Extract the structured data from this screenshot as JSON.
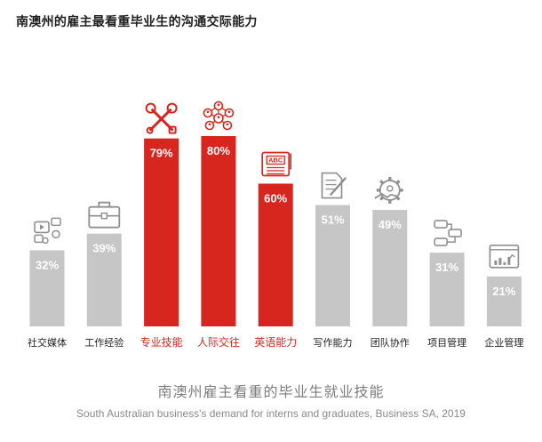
{
  "title": "南澳州的雇主最看重毕业生的沟通交际能力",
  "chart_data": {
    "type": "bar",
    "categories": [
      "社交媒体",
      "工作经验",
      "专业技能",
      "人际交往",
      "英语能力",
      "写作能力",
      "团队协作",
      "项目管理",
      "企业管理"
    ],
    "values": [
      32,
      39,
      79,
      80,
      60,
      51,
      49,
      31,
      21
    ],
    "value_labels": [
      "32%",
      "39%",
      "79%",
      "80%",
      "60%",
      "51%",
      "49%",
      "31%",
      "21%"
    ],
    "highlighted": [
      false,
      false,
      true,
      true,
      true,
      false,
      false,
      false,
      false
    ],
    "icons": [
      "social-media-icon",
      "briefcase-icon",
      "tools-icon",
      "network-people-icon",
      "abc-book-icon",
      "writing-icon",
      "teamwork-gear-icon",
      "project-flow-icon",
      "dashboard-icon"
    ],
    "ylim": [
      0,
      100
    ],
    "grid": false,
    "colors": {
      "highlight": "#d7261e",
      "normal": "#c6c6c6",
      "label_highlight": "#d7261e",
      "label_normal": "#1f1f1f"
    }
  },
  "footer": {
    "title_cn": "南澳州雇主看重的毕业生就业技能",
    "source": "South Australian business's demand for interns and graduates, Business SA, 2019"
  }
}
